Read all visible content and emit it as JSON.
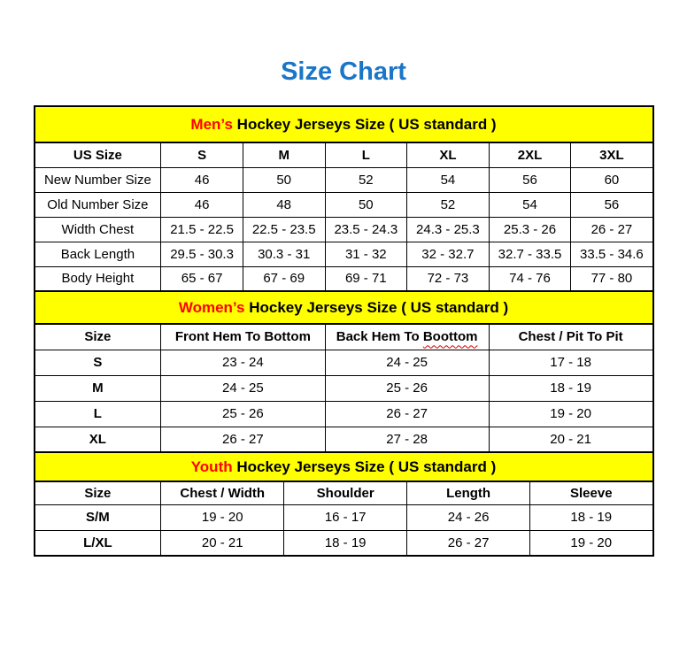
{
  "page_title": "Size Chart",
  "colors": {
    "title_blue": "#1976C8",
    "band_yellow": "#FFFF00",
    "highlight_red": "#FF0000",
    "squiggle_red": "#D40000"
  },
  "tables": [
    {
      "name": "mens",
      "caption": {
        "highlight": "Men’s",
        "rest": " Hockey Jerseys Size ( US standard )"
      },
      "columns": [
        {
          "label": "US Size"
        },
        {
          "label": "S"
        },
        {
          "label": "M"
        },
        {
          "label": "L"
        },
        {
          "label": "XL"
        },
        {
          "label": "2XL"
        },
        {
          "label": "3XL"
        }
      ],
      "rows": [
        {
          "label": "New Number Size",
          "values": [
            "46",
            "50",
            "52",
            "54",
            "56",
            "60"
          ]
        },
        {
          "label": "Old Number Size",
          "values": [
            "46",
            "48",
            "50",
            "52",
            "54",
            "56"
          ]
        },
        {
          "label": "Width Chest",
          "values": [
            "21.5 - 22.5",
            "22.5 - 23.5",
            "23.5 - 24.3",
            "24.3 - 25.3",
            "25.3 - 26",
            "26 - 27"
          ]
        },
        {
          "label": "Back Length",
          "values": [
            "29.5 - 30.3",
            "30.3 - 31",
            "31 - 32",
            "32 - 32.7",
            "32.7 - 33.5",
            "33.5 - 34.6"
          ]
        },
        {
          "label": "Body Height",
          "values": [
            "65 - 67",
            "67 - 69",
            "69 - 71",
            "72 - 73",
            "74 - 76",
            "77 - 80"
          ]
        }
      ]
    },
    {
      "name": "womens",
      "caption": {
        "highlight": "Women’s",
        "rest": " Hockey Jerseys Size ( US standard )"
      },
      "columns": [
        {
          "label": "Size"
        },
        {
          "label": "Front Hem To Bottom"
        },
        {
          "label": "Back Hem To ",
          "misspelled": "Boottom"
        },
        {
          "label": "Chest / Pit To Pit"
        }
      ],
      "rows": [
        {
          "label": "S",
          "values": [
            "23 - 24",
            "24 - 25",
            "17 - 18"
          ]
        },
        {
          "label": "M",
          "values": [
            "24 - 25",
            "25 - 26",
            "18 - 19"
          ]
        },
        {
          "label": "L",
          "values": [
            "25 - 26",
            "26 - 27",
            "19 - 20"
          ]
        },
        {
          "label": "XL",
          "values": [
            "26 - 27",
            "27 - 28",
            "20 - 21"
          ]
        }
      ]
    },
    {
      "name": "youth",
      "caption": {
        "highlight": "Youth",
        "rest": " Hockey Jerseys Size ( US standard )"
      },
      "columns": [
        {
          "label": "Size"
        },
        {
          "label": "Chest / Width"
        },
        {
          "label": "Shoulder"
        },
        {
          "label": "Length"
        },
        {
          "label": "Sleeve"
        }
      ],
      "rows": [
        {
          "label": "S/M",
          "values": [
            "19 - 20",
            "16 - 17",
            "24 - 26",
            "18 - 19"
          ]
        },
        {
          "label": "L/XL",
          "values": [
            "20 - 21",
            "18 - 19",
            "26 - 27",
            "19 - 20"
          ]
        }
      ]
    }
  ]
}
